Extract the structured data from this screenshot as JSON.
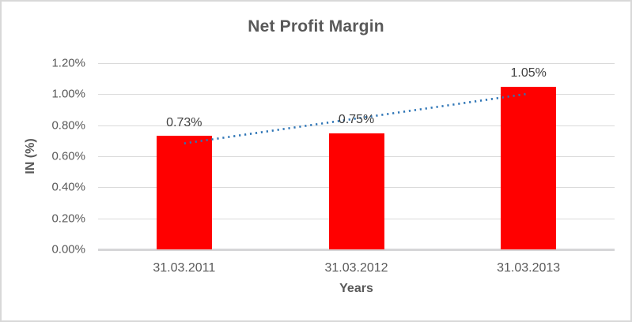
{
  "chart_data": {
    "type": "bar",
    "title": "Net Profit Margin",
    "xlabel": "Years",
    "ylabel": "IN (%)",
    "categories": [
      "31.03.2011",
      "31.03.2012",
      "31.03.2013"
    ],
    "values": [
      0.73,
      0.75,
      1.05
    ],
    "data_labels": [
      "0.73%",
      "0.75%",
      "1.05%"
    ],
    "y_ticks_bottom_up": [
      "0.00%",
      "0.20%",
      "0.40%",
      "0.60%",
      "0.80%",
      "1.00%",
      "1.20%"
    ],
    "ylim": [
      0,
      1.2
    ],
    "grid": true,
    "legend": "none",
    "bar_color": "#ff0000",
    "trendline": {
      "type": "linear",
      "style": "dotted",
      "color": "#2e75b6",
      "y_start": 0.683,
      "y_end": 1.003
    },
    "colors": {
      "title_text": "#595959",
      "axis_text": "#595959",
      "data_label_text": "#404040",
      "gridline": "#dadada",
      "axis_line": "#d6d6d8",
      "frame_border": "#d8d8d8",
      "background": "#ffffff"
    }
  }
}
